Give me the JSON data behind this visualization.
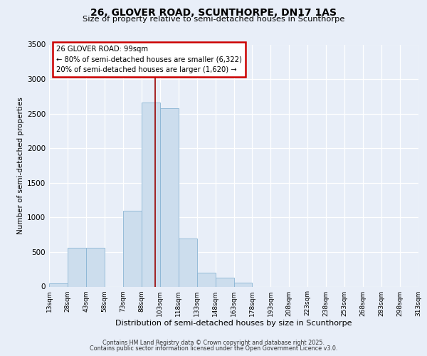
{
  "title_line1": "26, GLOVER ROAD, SCUNTHORPE, DN17 1AS",
  "title_line2": "Size of property relative to semi-detached houses in Scunthorpe",
  "xlabel": "Distribution of semi-detached houses by size in Scunthorpe",
  "ylabel": "Number of semi-detached properties",
  "footnote1": "Contains HM Land Registry data © Crown copyright and database right 2025.",
  "footnote2": "Contains public sector information licensed under the Open Government Licence v3.0.",
  "annotation_line1": "26 GLOVER ROAD: 99sqm",
  "annotation_line2": "← 80% of semi-detached houses are smaller (6,322)",
  "annotation_line3": "20% of semi-detached houses are larger (1,620) →",
  "bin_edges": [
    13,
    28,
    43,
    58,
    73,
    88,
    103,
    118,
    133,
    148,
    163,
    178,
    193,
    208,
    223,
    238,
    253,
    268,
    283,
    298,
    313
  ],
  "bin_labels": [
    "13sqm",
    "28sqm",
    "43sqm",
    "58sqm",
    "73sqm",
    "88sqm",
    "103sqm",
    "118sqm",
    "133sqm",
    "148sqm",
    "163sqm",
    "178sqm",
    "193sqm",
    "208sqm",
    "223sqm",
    "238sqm",
    "253sqm",
    "268sqm",
    "283sqm",
    "298sqm",
    "313sqm"
  ],
  "bar_heights": [
    50,
    560,
    560,
    0,
    1100,
    2660,
    2580,
    690,
    200,
    130,
    60,
    0,
    0,
    0,
    0,
    0,
    0,
    0,
    0,
    0
  ],
  "bar_color": "#ccdded",
  "bar_edge_color": "#8ab4d4",
  "vline_x": 99,
  "vline_color": "#990000",
  "ylim": [
    0,
    3500
  ],
  "yticks": [
    0,
    500,
    1000,
    1500,
    2000,
    2500,
    3000,
    3500
  ],
  "bg_color": "#e8eef8",
  "grid_color": "#ffffff"
}
